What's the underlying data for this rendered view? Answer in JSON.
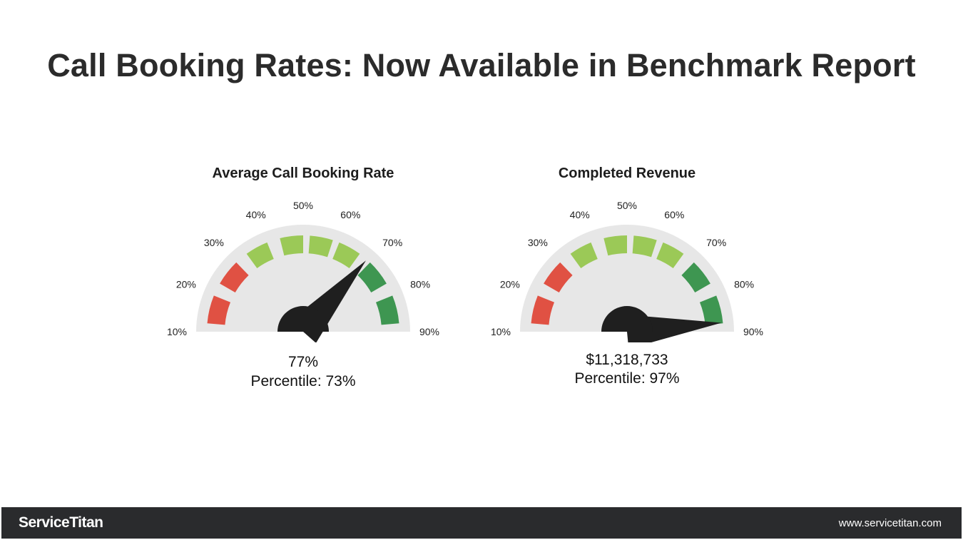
{
  "page": {
    "title": "Call Booking Rates: Now Available in Benchmark Report"
  },
  "colors": {
    "red": "#e05143",
    "light_green": "#9bc957",
    "dark_green": "#3e9651",
    "dial": "#e7e7e7",
    "needle": "#1f1f1f"
  },
  "chart_data": [
    {
      "type": "gauge",
      "title": "Average Call Booking Rate",
      "tick_labels": [
        "10%",
        "20%",
        "30%",
        "40%",
        "50%",
        "60%",
        "70%",
        "80%",
        "90%"
      ],
      "range": [
        0,
        100
      ],
      "bands": [
        {
          "from": 0,
          "to": 22,
          "color": "red"
        },
        {
          "from": 22,
          "to": 78,
          "color": "light_green"
        },
        {
          "from": 78,
          "to": 100,
          "color": "dark_green"
        }
      ],
      "needle_value": 73,
      "value_label": "77%",
      "percentile_label": "Percentile: 73%"
    },
    {
      "type": "gauge",
      "title": "Completed Revenue",
      "tick_labels": [
        "10%",
        "20%",
        "30%",
        "40%",
        "50%",
        "60%",
        "70%",
        "80%",
        "90%"
      ],
      "range": [
        0,
        100
      ],
      "bands": [
        {
          "from": 0,
          "to": 22,
          "color": "red"
        },
        {
          "from": 22,
          "to": 78,
          "color": "light_green"
        },
        {
          "from": 78,
          "to": 100,
          "color": "dark_green"
        }
      ],
      "needle_value": 97,
      "value_label": "$11,318,733",
      "percentile_label": "Percentile: 97%"
    }
  ],
  "footer": {
    "logo": "ServiceTitan",
    "url": "www.servicetitan.com"
  }
}
